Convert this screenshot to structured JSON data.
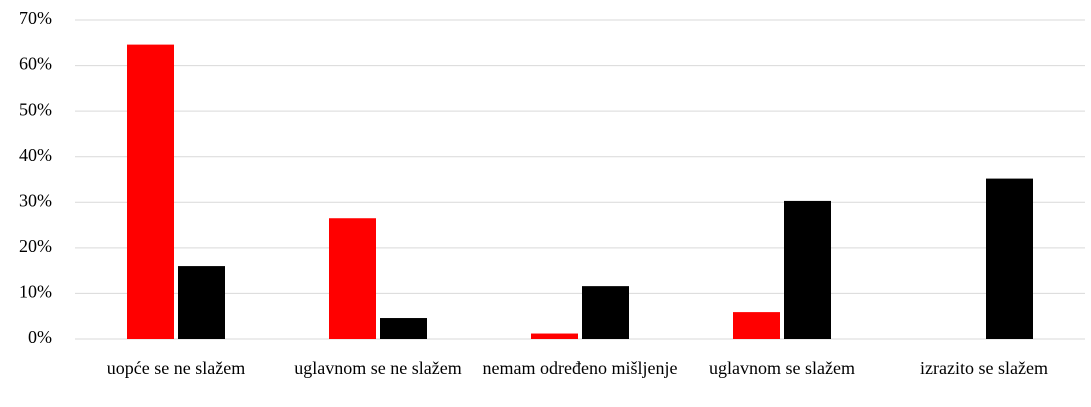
{
  "chart_data": {
    "type": "bar",
    "categories": [
      "uopće se ne slažem",
      "uglavnom se ne slažem",
      "nemam određeno mišljenje",
      "uglavnom se slažem",
      "izrazito se slažem"
    ],
    "series": [
      {
        "color": "#ff0000",
        "values": [
          64.6,
          26.5,
          1.2,
          5.9,
          0
        ]
      },
      {
        "color": "#000000",
        "values": [
          16.0,
          4.6,
          11.6,
          30.3,
          35.2
        ]
      }
    ],
    "ylim": [
      0,
      70
    ],
    "yticks": [
      {
        "value": 0,
        "label": "0%"
      },
      {
        "value": 10,
        "label": "10%"
      },
      {
        "value": 20,
        "label": "20%"
      },
      {
        "value": 30,
        "label": "30%"
      },
      {
        "value": 40,
        "label": "40%"
      },
      {
        "value": 50,
        "label": "50%"
      },
      {
        "value": 60,
        "label": "60%"
      },
      {
        "value": 70,
        "label": "70%"
      }
    ],
    "grid": true
  }
}
